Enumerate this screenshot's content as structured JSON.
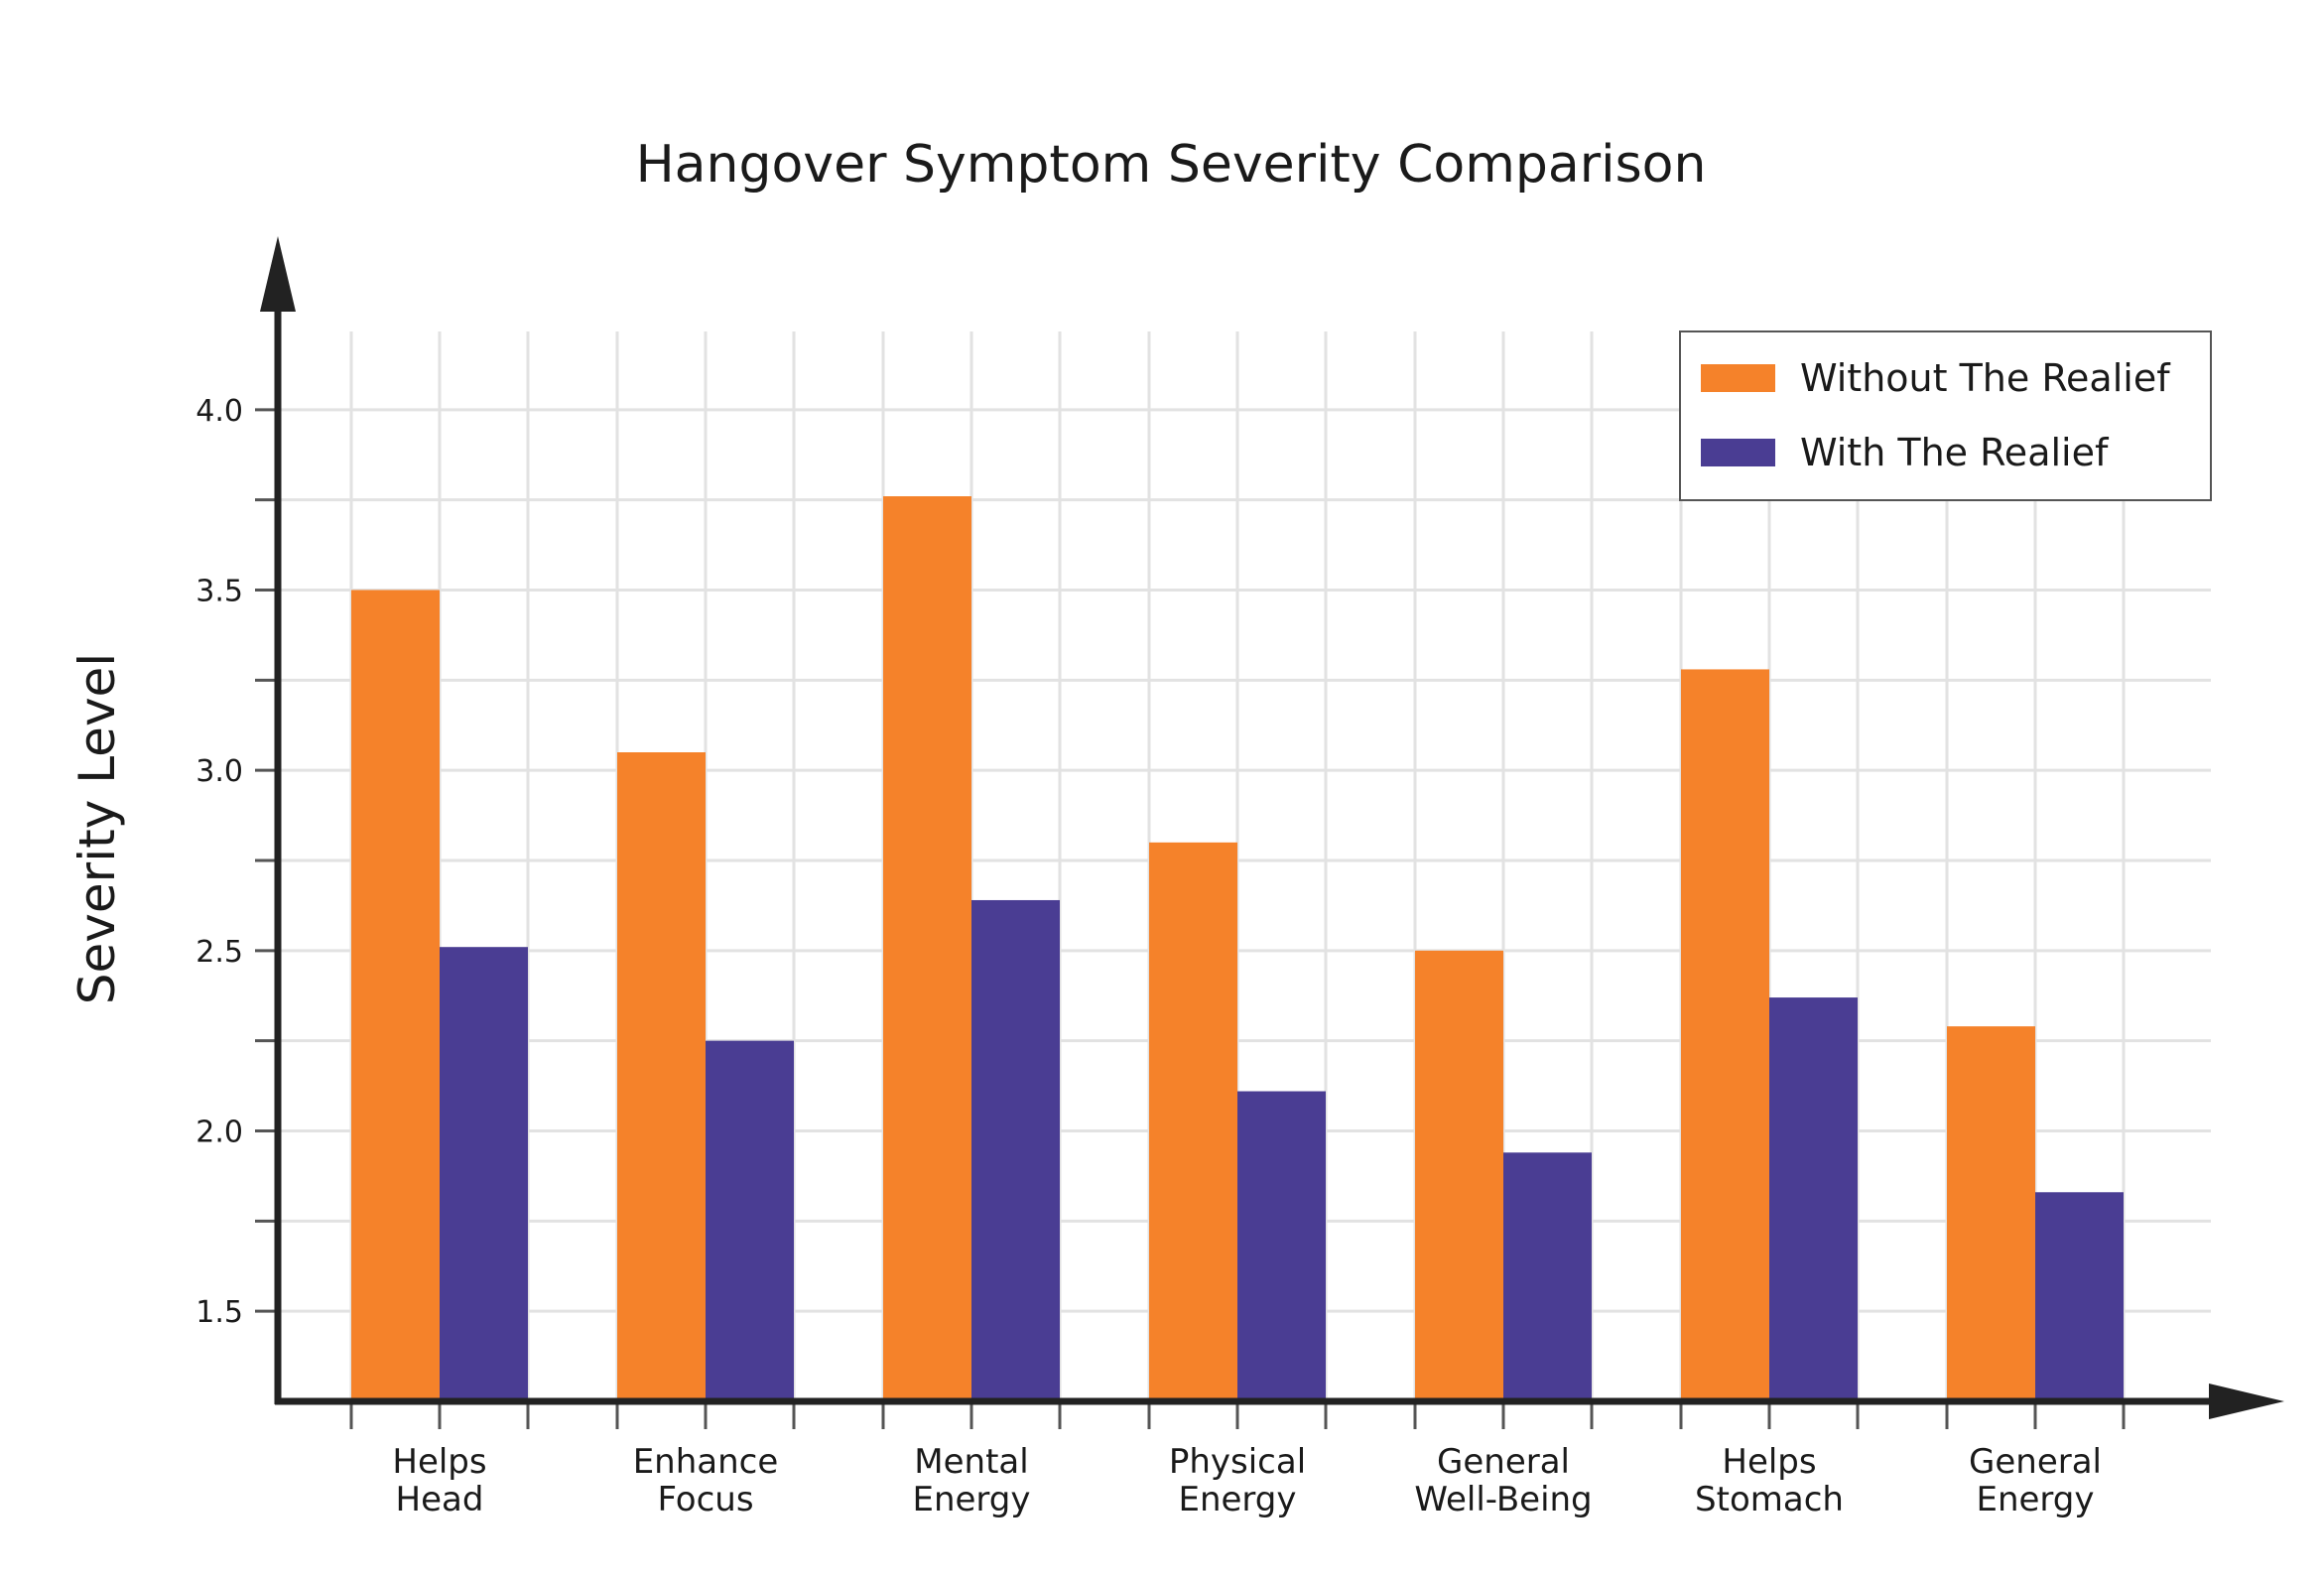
{
  "chart_data": {
    "type": "bar",
    "title": "Hangover Symptom Severity Comparison",
    "xlabel": "",
    "ylabel": "Severity Level",
    "categories": [
      [
        "Helps",
        "Head"
      ],
      [
        "Enhance",
        "Focus"
      ],
      [
        "Mental",
        "Energy"
      ],
      [
        "Physical",
        "Energy"
      ],
      [
        "General",
        "Well-Being"
      ],
      [
        "Helps",
        "Stomach"
      ],
      [
        "General",
        "Energy"
      ]
    ],
    "series": [
      {
        "name": "Without The Realief",
        "color": "#F5822A",
        "values": [
          3.5,
          3.05,
          3.76,
          2.8,
          2.5,
          3.28,
          2.29
        ]
      },
      {
        "name": "With The Realief",
        "color": "#4A3D93",
        "values": [
          2.51,
          2.25,
          2.64,
          2.11,
          1.94,
          2.37,
          1.83
        ]
      }
    ],
    "ylim": [
      1.25,
      4.25
    ],
    "yticks": [
      "1.5",
      "2.0",
      "2.5",
      "3.0",
      "3.5",
      "4.0"
    ],
    "grid": true,
    "legend": "top-right"
  }
}
